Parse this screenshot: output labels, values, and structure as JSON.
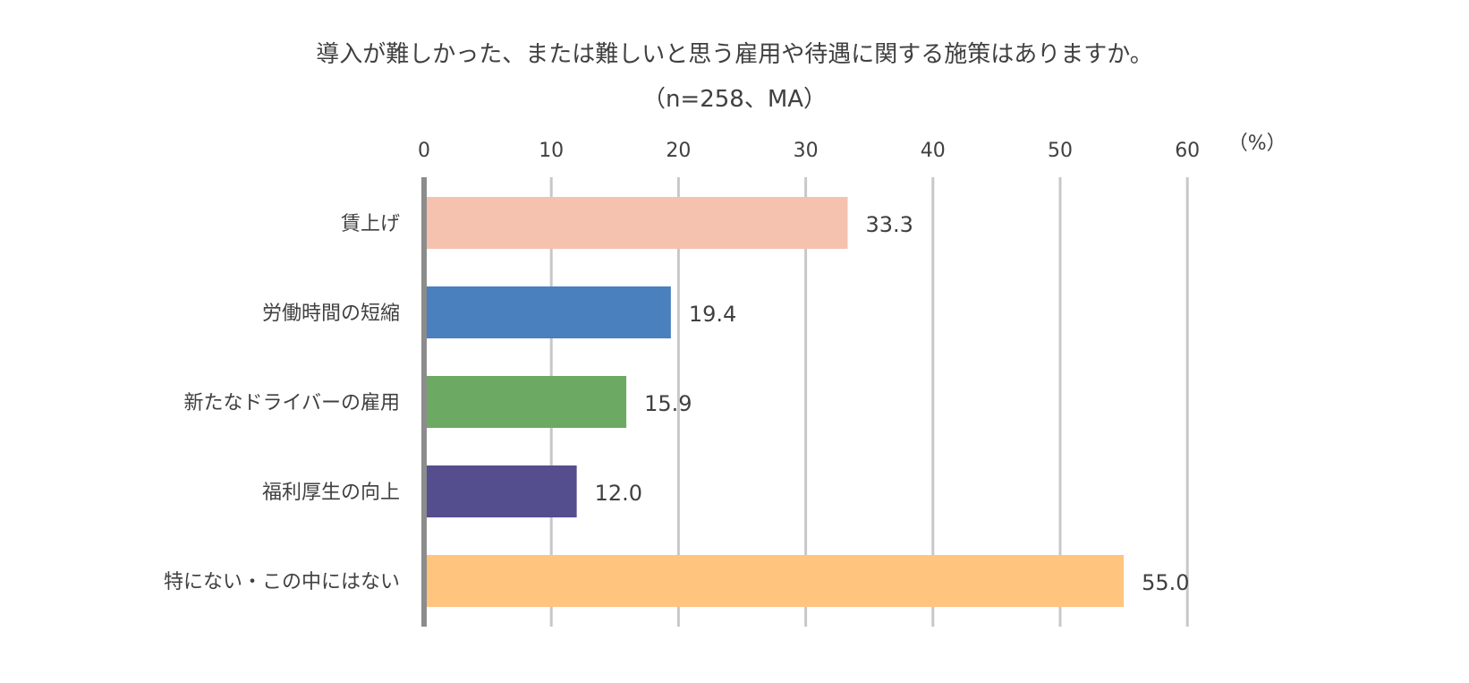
{
  "chart_data": {
    "type": "bar",
    "orientation": "horizontal",
    "title": "導入が難しかった、または難しいと思う雇用や待遇に関する施策はありますか。",
    "subtitle": "（n=258、MA）",
    "unit_label": "（%）",
    "xlim": [
      0,
      60
    ],
    "x_ticks": [
      0,
      10,
      20,
      30,
      40,
      50,
      60
    ],
    "x_axis_position": "top",
    "grid": true,
    "legend": "none",
    "categories": [
      "賃上げ",
      "労働時間の短縮",
      "新たなドライバーの雇用",
      "福利厚生の向上",
      "特にない・この中にはない"
    ],
    "values": [
      33.3,
      19.4,
      15.9,
      12.0,
      55.0
    ],
    "value_labels": [
      "33.3",
      "19.4",
      "15.9",
      "12.0",
      "55.0"
    ],
    "colors": [
      "#F5C2B0",
      "#4A80BE",
      "#6CAA64",
      "#544E8E",
      "#FFC47E"
    ],
    "gridline_color": "#C8C8C8",
    "axis_color": "#8C8C8C"
  }
}
